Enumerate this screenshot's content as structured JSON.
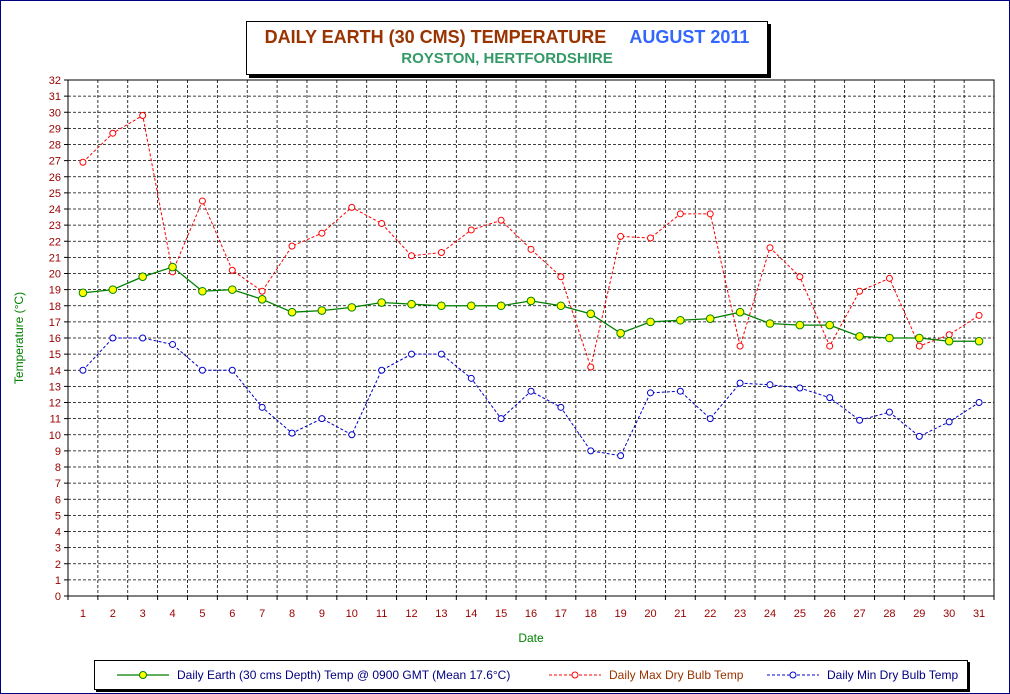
{
  "title": {
    "main": "DAILY EARTH (30 CMS) TEMPERATURE",
    "month": "AUGUST 2011",
    "subtitle": "ROYSTON, HERTFORDSHIRE"
  },
  "colors": {
    "earth": "#008000",
    "earth_marker": "#ffff00",
    "max": "#ff0000",
    "min": "#0000cc",
    "axis_label": "#990000",
    "ylabel": "#008000",
    "xlabel": "#008000"
  },
  "chart_data": {
    "type": "line",
    "xlabel": "Date",
    "ylabel": "Temperature (°C)",
    "x": [
      1,
      2,
      3,
      4,
      5,
      6,
      7,
      8,
      9,
      10,
      11,
      12,
      13,
      14,
      15,
      16,
      17,
      18,
      19,
      20,
      21,
      22,
      23,
      24,
      25,
      26,
      27,
      28,
      29,
      30,
      31
    ],
    "ylim": [
      0,
      32
    ],
    "yticks": [
      0,
      1,
      2,
      3,
      4,
      5,
      6,
      7,
      8,
      9,
      10,
      11,
      12,
      13,
      14,
      15,
      16,
      17,
      18,
      19,
      20,
      21,
      22,
      23,
      24,
      25,
      26,
      27,
      28,
      29,
      30,
      31,
      32
    ],
    "grid": true,
    "legend_position": "bottom",
    "series": [
      {
        "name": "Daily Earth (30 cms Depth) Temp @ 0900 GMT (Mean 17.6°C)",
        "style": "solid",
        "values": [
          18.8,
          19.0,
          19.8,
          20.4,
          18.9,
          19.0,
          18.4,
          17.6,
          17.7,
          17.9,
          18.2,
          18.1,
          18.0,
          18.0,
          18.0,
          18.3,
          18.0,
          17.5,
          16.3,
          17.0,
          17.1,
          17.2,
          17.6,
          16.9,
          16.8,
          16.8,
          16.1,
          16.0,
          16.0,
          15.8,
          15.8
        ]
      },
      {
        "name": "Daily Max Dry Bulb Temp",
        "style": "dashed",
        "values": [
          26.9,
          28.7,
          29.8,
          20.1,
          24.5,
          20.2,
          18.9,
          21.7,
          22.5,
          24.1,
          23.1,
          21.1,
          21.3,
          22.7,
          23.3,
          21.5,
          19.8,
          14.2,
          22.3,
          22.2,
          23.7,
          23.7,
          15.5,
          21.6,
          19.8,
          15.5,
          18.9,
          19.7,
          15.5,
          16.2,
          17.4
        ]
      },
      {
        "name": "Daily Min Dry Bulb Temp",
        "style": "dashed",
        "values": [
          14.0,
          16.0,
          16.0,
          15.6,
          14.0,
          14.0,
          11.7,
          10.1,
          11.0,
          10.0,
          14.0,
          15.0,
          15.0,
          13.5,
          11.0,
          12.7,
          11.7,
          9.0,
          8.7,
          12.6,
          12.7,
          11.0,
          13.2,
          13.1,
          12.9,
          12.3,
          10.9,
          11.4,
          9.9,
          10.8,
          12.0
        ]
      }
    ]
  }
}
